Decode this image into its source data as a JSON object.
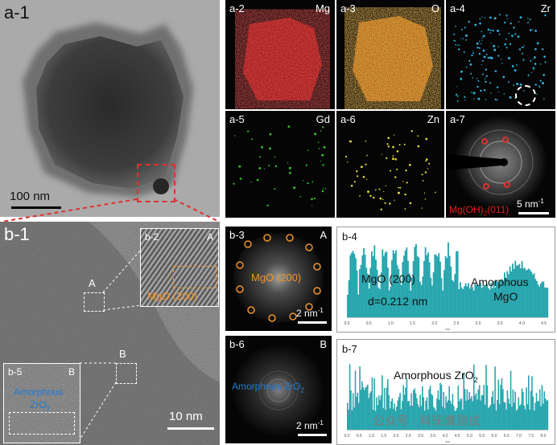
{
  "panels": {
    "a1": {
      "label": "a-1",
      "scale": "100 nm"
    },
    "a2": {
      "label": "a-2",
      "element": "Mg",
      "color": "#e01b1b"
    },
    "a3": {
      "label": "a-3",
      "element": "O",
      "color": "#f08a1e"
    },
    "a4": {
      "label": "a-4",
      "element": "Zr",
      "color": "#2fb4e0"
    },
    "a5": {
      "label": "a-5",
      "element": "Gd",
      "color": "#37c52f"
    },
    "a6": {
      "label": "a-6",
      "element": "Zn",
      "color": "#e8e03a"
    },
    "a7": {
      "label": "a-7",
      "scale": "5 nm",
      "scale_sup": "-1",
      "annotation": "Mg(OH)",
      "annotation_sub": "2",
      "annotation_tail": "(011)"
    },
    "b1": {
      "label": "b-1",
      "scale": "10 nm",
      "marker_a": "A",
      "marker_b": "B"
    },
    "b2": {
      "label": "b-2",
      "region": "A",
      "annotation": "MgO (200)"
    },
    "b3": {
      "label": "b-3",
      "region": "A",
      "annotation": "MgO (200)",
      "scale": "2 nm",
      "scale_sup": "-1"
    },
    "b4": {
      "label": "b-4",
      "annotation1": "MgO (200)",
      "annotation2": "d=0.212 nm",
      "annotation3": "Amorphous",
      "annotation4": "MgO"
    },
    "b5": {
      "label": "b-5",
      "region": "B",
      "annotation1": "Amorphous",
      "annotation2": "ZrO",
      "annotation2_sub": "2"
    },
    "b6": {
      "label": "b-6",
      "region": "B",
      "annotation1": "Amorphous ZrO",
      "annotation1_sub": "2",
      "scale": "2 nm",
      "scale_sup": "-1"
    },
    "b7": {
      "label": "b-7",
      "annotation1": "Amorphous ZrO",
      "annotation1_sub": "2"
    }
  },
  "watermark": "公众号 · 科研鹰测试",
  "colors": {
    "profile": "#29a6ae",
    "highlight_box": "#e03030",
    "orange": "#f0922a",
    "blue": "#1e7bd4"
  },
  "chart_data": [
    {
      "type": "bar",
      "title": "",
      "xlabel": "nm",
      "ylabel": "",
      "xlim": [
        0,
        4.6
      ],
      "x_ticks": [
        "0.0",
        "0.5",
        "1.0",
        "1.5",
        "2.0",
        "2.5",
        "3.0",
        "3.5",
        "4.0",
        "4.5"
      ],
      "annotations": [
        "MgO (200)",
        "d=0.212 nm",
        "Amorphous MgO"
      ]
    },
    {
      "type": "bar",
      "title": "",
      "xlabel": "nm",
      "ylabel": "",
      "xlim": [
        0,
        8.2
      ],
      "x_ticks": [
        "0.0",
        "0.5",
        "1.0",
        "1.5",
        "2.0",
        "2.5",
        "3.0",
        "3.5",
        "4.0",
        "4.5",
        "5.0",
        "5.5",
        "6.0",
        "6.5",
        "7.0",
        "7.5",
        "8.0"
      ],
      "annotations": [
        "Amorphous ZrO2"
      ]
    }
  ]
}
